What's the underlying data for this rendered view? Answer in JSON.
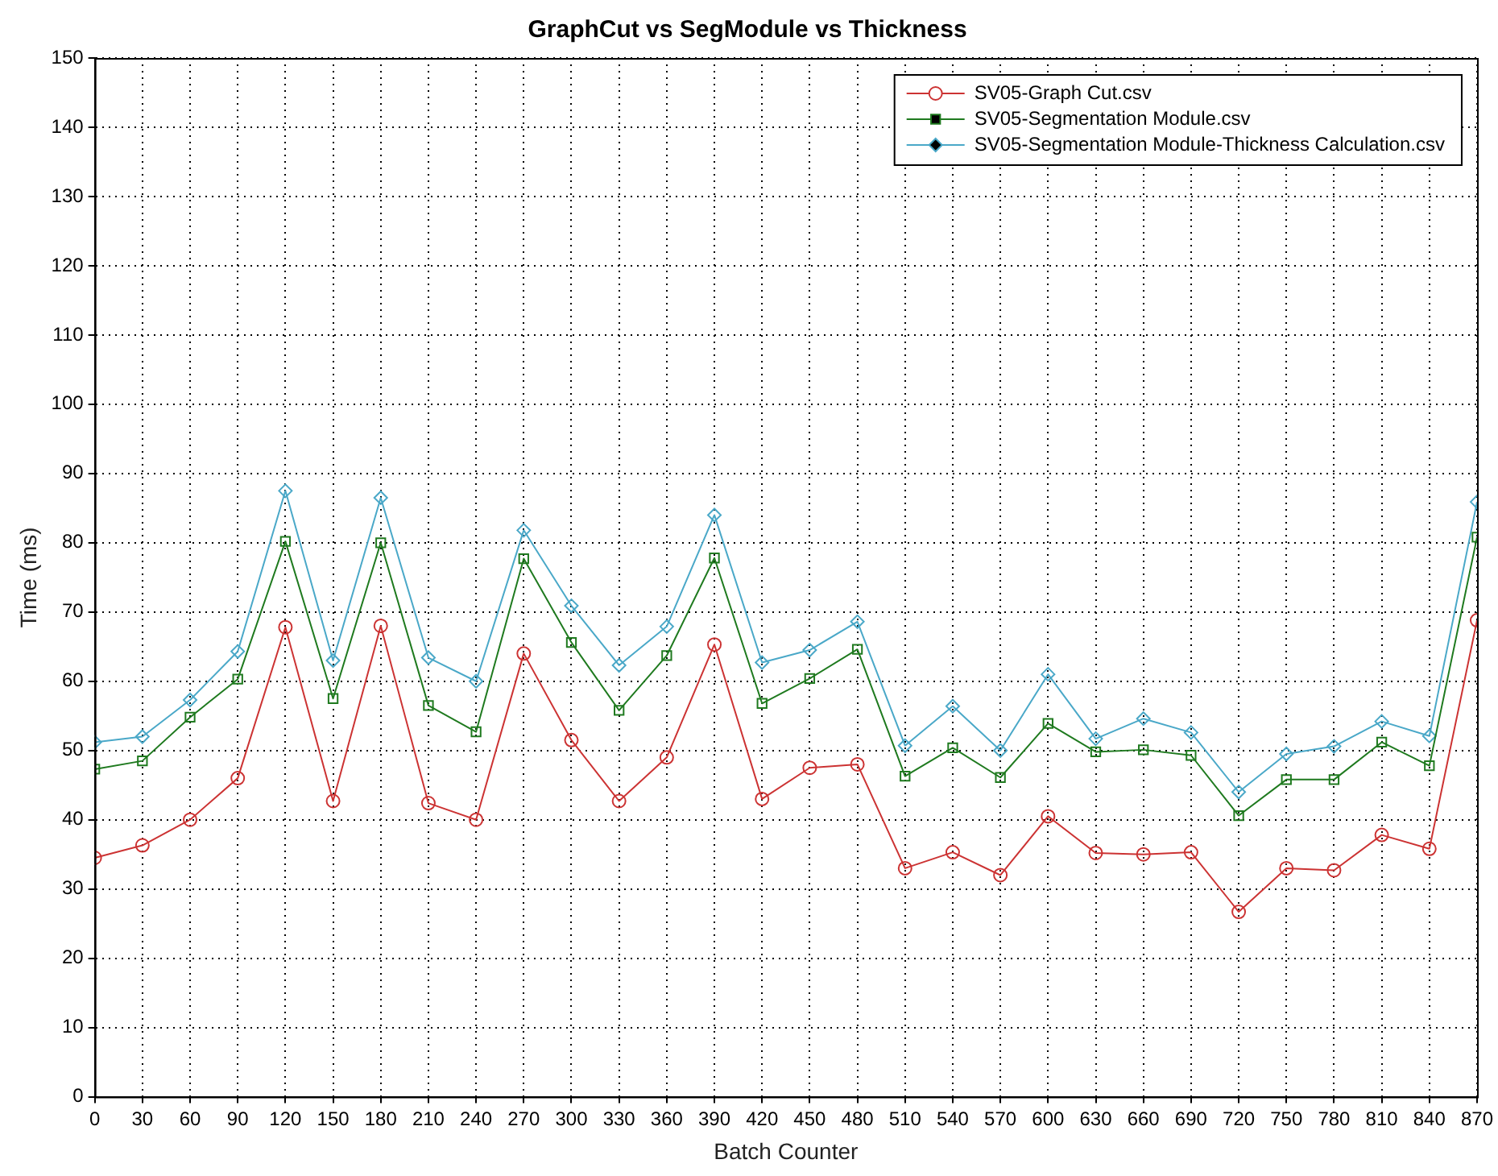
{
  "chart_data": {
    "type": "line",
    "title": "GraphCut vs SegModule vs Thickness",
    "xlabel": "Batch Counter",
    "ylabel": "Time (ms)",
    "x": [
      0,
      30,
      60,
      90,
      120,
      150,
      180,
      210,
      240,
      270,
      300,
      330,
      360,
      390,
      420,
      450,
      480,
      510,
      540,
      570,
      600,
      630,
      660,
      690,
      720,
      750,
      780,
      810,
      840,
      870
    ],
    "series": [
      {
        "name": "SV05-Graph Cut.csv",
        "color": "#cc3333",
        "marker": "circle",
        "values": [
          34.5,
          36.3,
          40,
          46,
          67.8,
          42.7,
          68,
          42.4,
          40,
          64,
          51.5,
          42.7,
          49,
          65.3,
          43,
          47.5,
          48,
          33,
          35.3,
          32,
          40.5,
          35.2,
          35,
          35.3,
          26.7,
          33,
          32.7,
          37.8,
          35.8,
          68.8
        ]
      },
      {
        "name": "SV05-Segmentation Module.csv",
        "color": "#1f7a1f",
        "marker": "square",
        "values": [
          47.3,
          48.5,
          54.8,
          60.3,
          80.2,
          57.5,
          80,
          56.5,
          52.7,
          77.7,
          65.6,
          55.8,
          63.7,
          77.8,
          56.8,
          60.4,
          64.6,
          46.3,
          50.4,
          46.1,
          53.9,
          49.8,
          50.1,
          49.3,
          40.6,
          45.8,
          45.8,
          51.2,
          47.8,
          80.8
        ]
      },
      {
        "name": "SV05-Segmentation Module-Thickness Calculation.csv",
        "color": "#4aa8c8",
        "marker": "diamond",
        "values": [
          51.2,
          52,
          57.3,
          64.3,
          87.5,
          63,
          86.5,
          63.4,
          60,
          81.8,
          70.9,
          62.3,
          67.9,
          84,
          62.7,
          64.5,
          68.6,
          50.7,
          56.4,
          50,
          61,
          51.7,
          54.6,
          52.6,
          44,
          49.5,
          50.6,
          54.2,
          52.1,
          85.9
        ]
      }
    ],
    "xlim": [
      0,
      870
    ],
    "xticks": [
      0,
      30,
      60,
      90,
      120,
      150,
      180,
      210,
      240,
      270,
      300,
      330,
      360,
      390,
      420,
      450,
      480,
      510,
      540,
      570,
      600,
      630,
      660,
      690,
      720,
      750,
      780,
      810,
      840,
      870
    ],
    "ylim": [
      0,
      150
    ],
    "yticks": [
      0,
      10,
      20,
      30,
      40,
      50,
      60,
      70,
      80,
      90,
      100,
      110,
      120,
      130,
      140,
      150
    ],
    "grid": true,
    "legend": "top right",
    "line_style": "solid"
  }
}
